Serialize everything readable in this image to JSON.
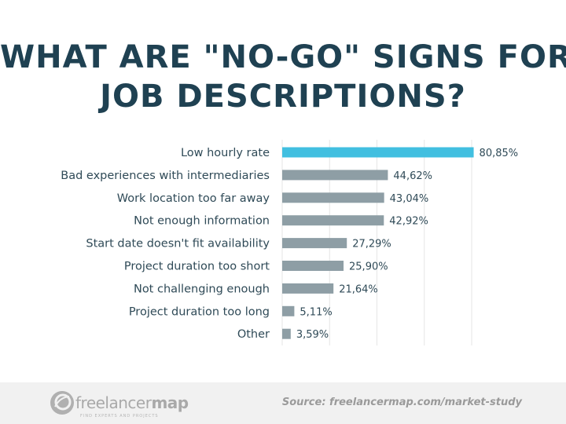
{
  "title_lines": [
    "WHAT ARE \"NO-GO\" SIGNS FOR",
    "JOB DESCRIPTIONS?"
  ],
  "chart_data": {
    "type": "bar",
    "orientation": "horizontal",
    "categories": [
      "Low hourly rate",
      "Bad experiences with intermediaries",
      "Work location too far away",
      "Not enough information",
      "Start date doesn't fit availability",
      "Project duration too short",
      "Not challenging enough",
      "Project duration too long",
      "Other"
    ],
    "values": [
      80.85,
      44.62,
      43.04,
      42.92,
      27.29,
      25.9,
      21.64,
      5.11,
      3.59
    ],
    "data_labels": [
      "80,85%",
      "44,62%",
      "43,04%",
      "42,92%",
      "27,29%",
      "25,90%",
      "21,64%",
      "5,11%",
      "3,59%"
    ],
    "xlim": [
      0,
      80
    ],
    "grid": true,
    "gridlines": [
      0,
      20,
      40,
      60,
      80
    ],
    "colors": {
      "highlight": "#41bfe0",
      "default": "#8e9ea5",
      "grid": "#e6e6e6",
      "labels": "#2f4a57"
    }
  },
  "footer": {
    "logo": {
      "name": "freelancer",
      "bold": "map",
      "tagline": "FIND EXPERTS AND PROJECTS"
    },
    "source": "Source:  freelancermap.com/market-study"
  }
}
